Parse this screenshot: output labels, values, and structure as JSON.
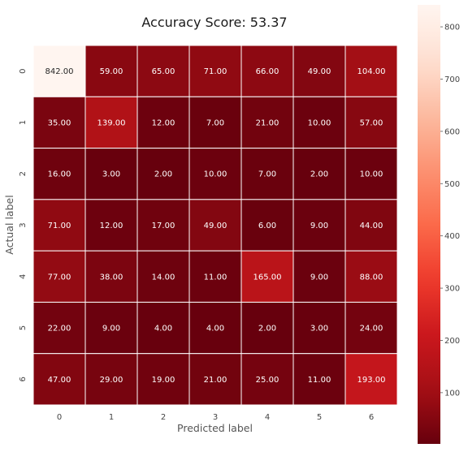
{
  "chart_data": {
    "type": "heatmap",
    "title": "Accuracy Score: 53.37",
    "xlabel": "Predicted label",
    "ylabel": "Actual label",
    "x_categories": [
      "0",
      "1",
      "2",
      "3",
      "4",
      "5",
      "6"
    ],
    "y_categories": [
      "0",
      "1",
      "2",
      "3",
      "4",
      "5",
      "6"
    ],
    "values": [
      [
        842.0,
        59.0,
        65.0,
        71.0,
        66.0,
        49.0,
        104.0
      ],
      [
        35.0,
        139.0,
        12.0,
        7.0,
        21.0,
        10.0,
        57.0
      ],
      [
        16.0,
        3.0,
        2.0,
        10.0,
        7.0,
        2.0,
        10.0
      ],
      [
        71.0,
        12.0,
        17.0,
        49.0,
        6.0,
        9.0,
        44.0
      ],
      [
        77.0,
        38.0,
        14.0,
        11.0,
        165.0,
        9.0,
        88.0
      ],
      [
        22.0,
        9.0,
        4.0,
        4.0,
        2.0,
        3.0,
        24.0
      ],
      [
        47.0,
        29.0,
        19.0,
        21.0,
        25.0,
        11.0,
        193.0
      ]
    ],
    "cell_labels": [
      [
        "842.00",
        "59.00",
        "65.00",
        "71.00",
        "66.00",
        "49.00",
        "104.00"
      ],
      [
        "35.00",
        "139.00",
        "12.00",
        "7.00",
        "21.00",
        "10.00",
        "57.00"
      ],
      [
        "16.00",
        "3.00",
        "2.00",
        "10.00",
        "7.00",
        "2.00",
        "10.00"
      ],
      [
        "71.00",
        "12.00",
        "17.00",
        "49.00",
        "6.00",
        "9.00",
        "44.00"
      ],
      [
        "77.00",
        "38.00",
        "14.00",
        "11.00",
        "165.00",
        "9.00",
        "88.00"
      ],
      [
        "22.00",
        "9.00",
        "4.00",
        "4.00",
        "2.00",
        "3.00",
        "24.00"
      ],
      [
        "47.00",
        "29.00",
        "19.00",
        "21.00",
        "25.00",
        "11.00",
        "193.00"
      ]
    ],
    "colormap": "Reds_r",
    "vmin": 2,
    "vmax": 842,
    "colorbar_ticks": [
      "100",
      "200",
      "300",
      "400",
      "500",
      "600",
      "700",
      "800"
    ],
    "colorbar_tick_values": [
      100,
      200,
      300,
      400,
      500,
      600,
      700,
      800
    ],
    "grid_line_color": "#ffffff"
  }
}
